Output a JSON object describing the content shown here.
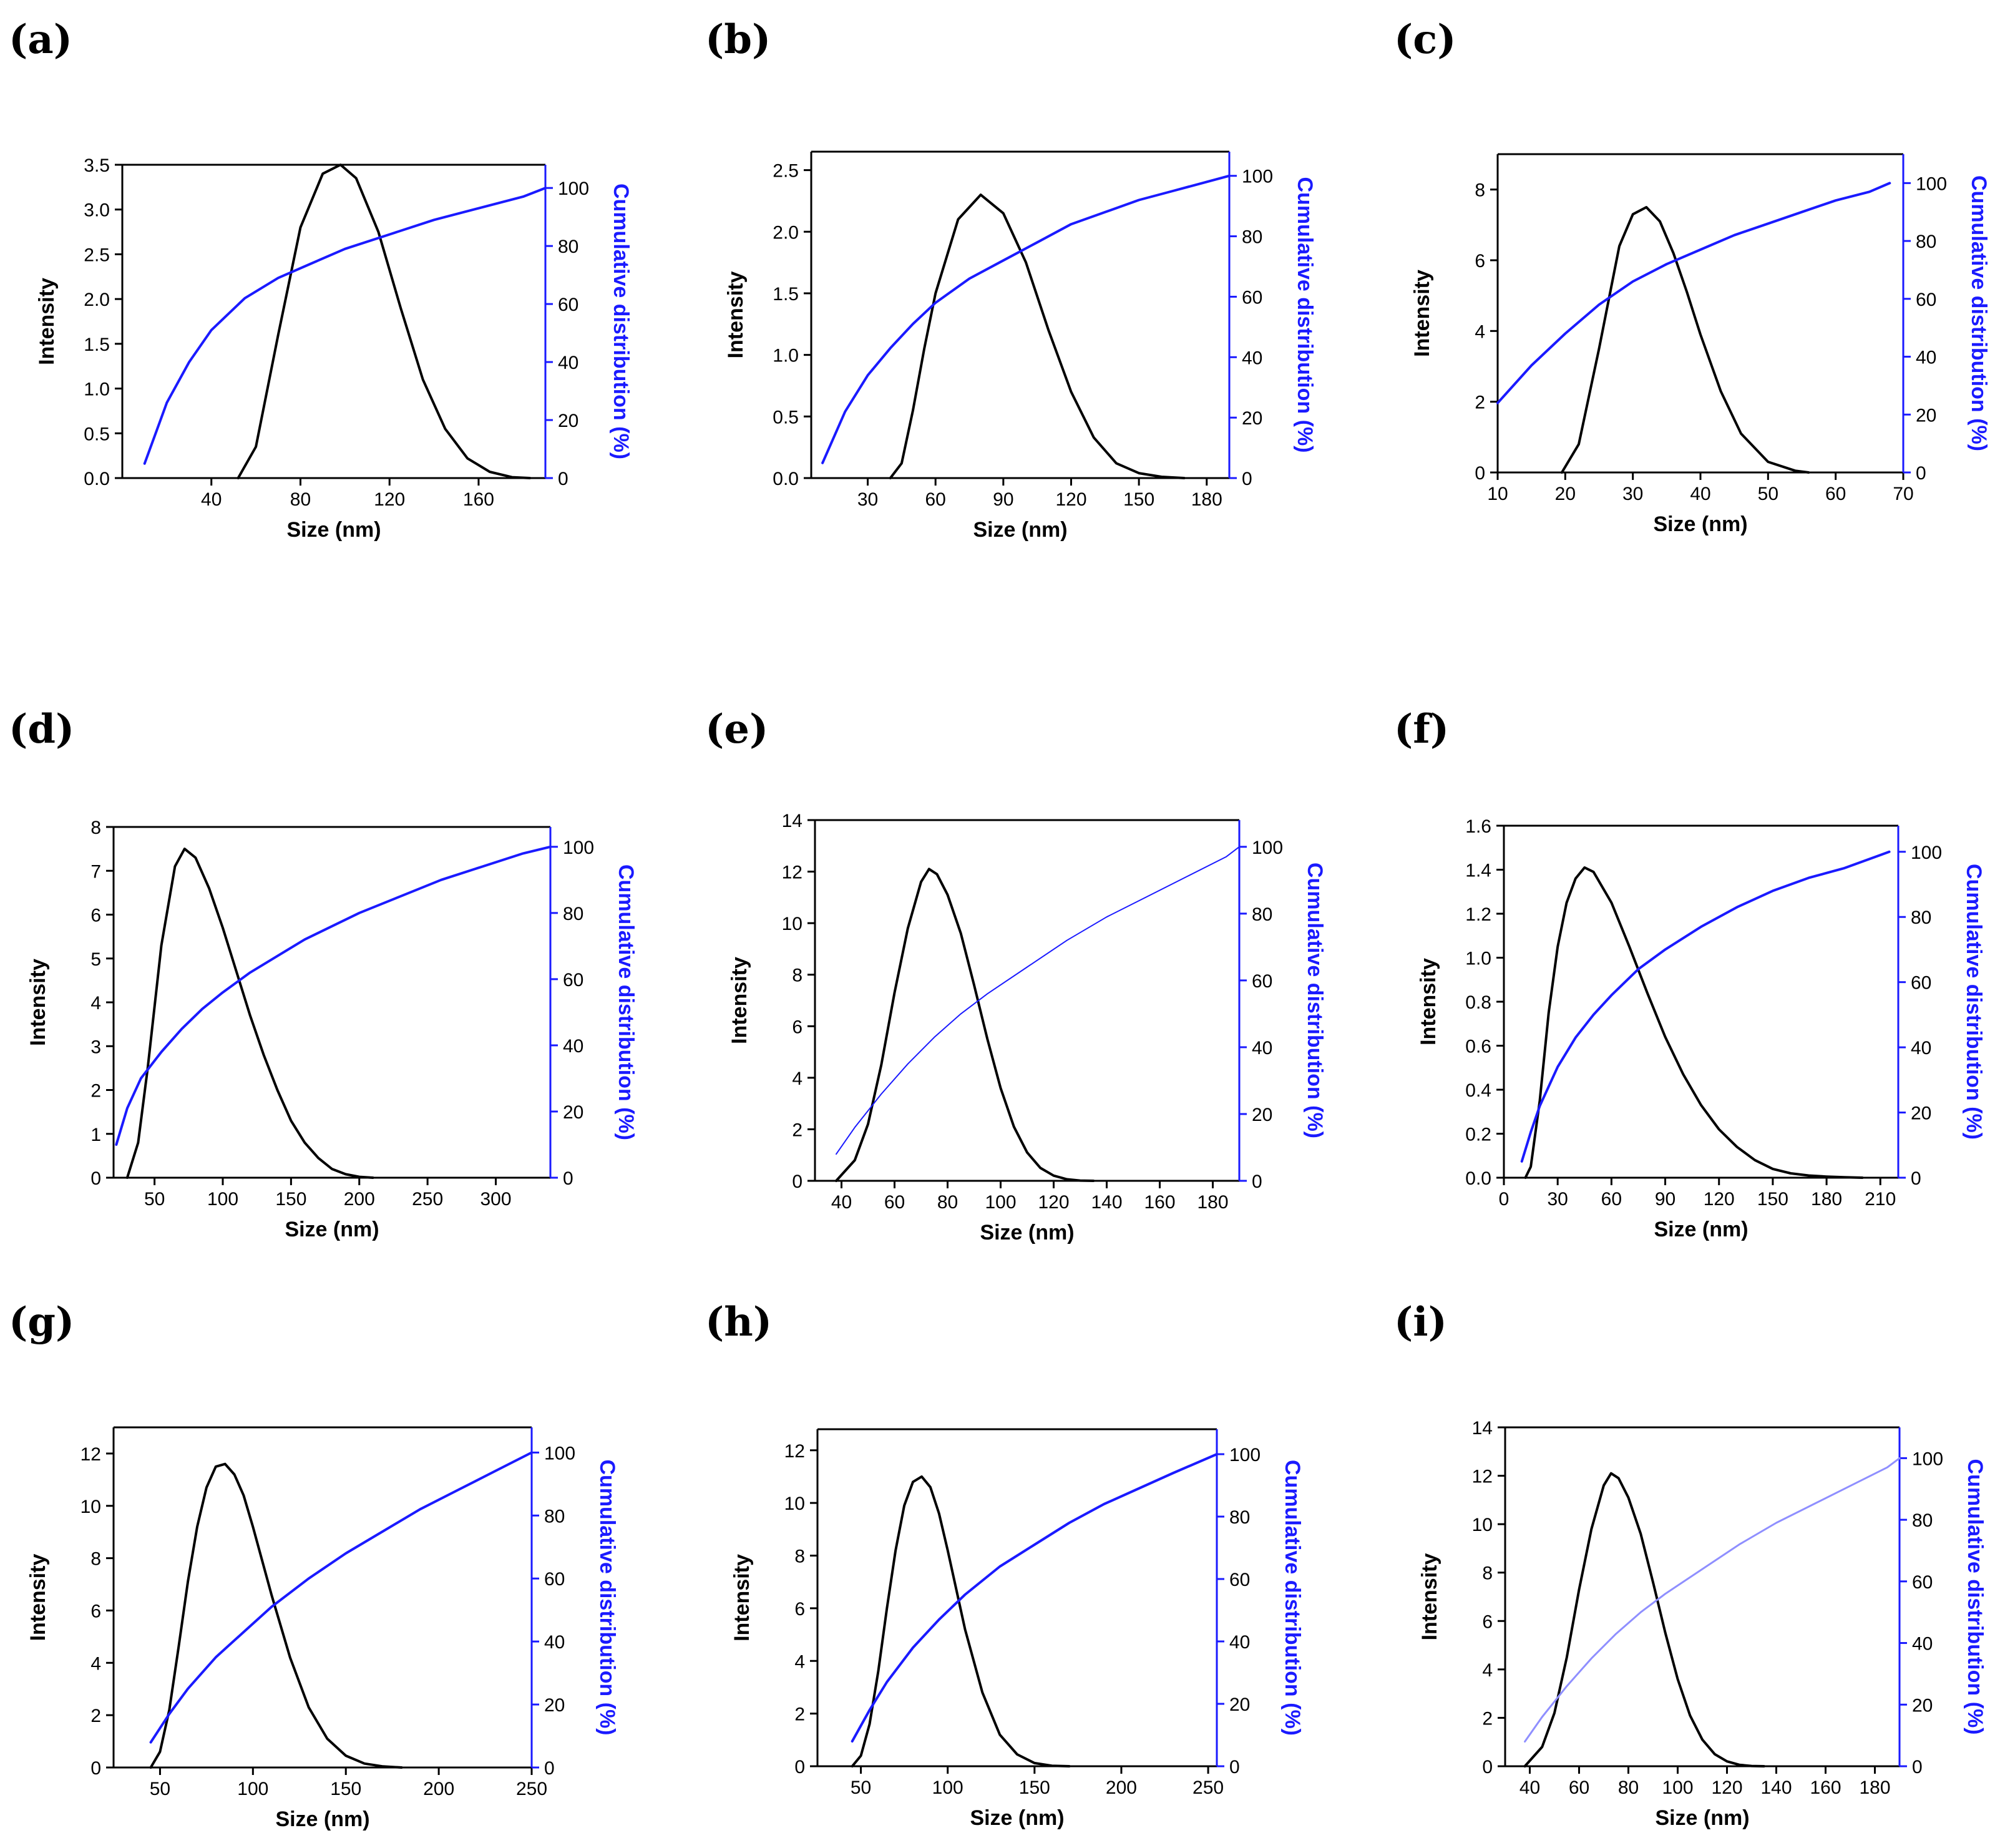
{
  "figure": {
    "colors": {
      "intensity": "#000000",
      "cumulative": "#1a1aff",
      "cumulative_light": "#8f8fff"
    }
  },
  "chart_data": [
    {
      "panel": "(a)",
      "type": "line",
      "xlabel": "Size (nm)",
      "ylabel": "Intensity",
      "y2label": "Cumulative distribution (%)",
      "xlim": [
        0,
        190
      ],
      "ylim": [
        0,
        3.5
      ],
      "y2lim": [
        0,
        108
      ],
      "xticks": [
        40,
        80,
        120,
        160
      ],
      "yticks": [
        0.0,
        0.5,
        1.0,
        1.5,
        2.0,
        2.5,
        3.0,
        3.5
      ],
      "y2ticks": [
        0,
        20,
        40,
        60,
        80,
        100
      ],
      "ytick_labels": [
        "0.0",
        "0.5",
        "1.0",
        "1.5",
        "2.0",
        "2.5",
        "3.0",
        "3.5"
      ],
      "series": [
        {
          "name": "Intensity",
          "axis": "left",
          "x": [
            52,
            60,
            70,
            80,
            90,
            98,
            105,
            115,
            125,
            135,
            145,
            155,
            165,
            175,
            183
          ],
          "y": [
            0,
            0.35,
            1.6,
            2.8,
            3.4,
            3.5,
            3.35,
            2.75,
            1.9,
            1.1,
            0.55,
            0.22,
            0.07,
            0.01,
            0
          ]
        },
        {
          "name": "Cumulative",
          "axis": "right",
          "x": [
            10,
            20,
            30,
            40,
            55,
            70,
            85,
            100,
            120,
            140,
            160,
            180,
            190
          ],
          "y": [
            5,
            26,
            40,
            51,
            62,
            69,
            74,
            79,
            84,
            89,
            93,
            97,
            100
          ]
        }
      ]
    },
    {
      "panel": "(b)",
      "type": "line",
      "xlabel": "Size (nm)",
      "ylabel": "Intensity",
      "y2label": "Cumulative distribution (%)",
      "xlim": [
        5,
        190
      ],
      "ylim": [
        0,
        2.65
      ],
      "y2lim": [
        0,
        108
      ],
      "xticks": [
        30,
        60,
        90,
        120,
        150,
        180
      ],
      "yticks": [
        0.0,
        0.5,
        1.0,
        1.5,
        2.0,
        2.5
      ],
      "y2ticks": [
        0,
        20,
        40,
        60,
        80,
        100
      ],
      "ytick_labels": [
        "0.0",
        "0.5",
        "1.0",
        "1.5",
        "2.0",
        "2.5"
      ],
      "series": [
        {
          "name": "Intensity",
          "axis": "left",
          "x": [
            40,
            45,
            50,
            55,
            60,
            70,
            80,
            90,
            100,
            110,
            120,
            130,
            140,
            150,
            160,
            170
          ],
          "y": [
            0,
            0.12,
            0.55,
            1.05,
            1.5,
            2.1,
            2.3,
            2.15,
            1.75,
            1.2,
            0.7,
            0.33,
            0.12,
            0.04,
            0.01,
            0
          ]
        },
        {
          "name": "Cumulative",
          "axis": "right",
          "x": [
            10,
            20,
            30,
            40,
            50,
            60,
            75,
            90,
            105,
            120,
            135,
            150,
            165,
            180,
            190
          ],
          "y": [
            5,
            22,
            34,
            43,
            51,
            58,
            66,
            72,
            78,
            84,
            88,
            92,
            95,
            98,
            100
          ]
        }
      ]
    },
    {
      "panel": "(c)",
      "type": "line",
      "xlabel": "Size (nm)",
      "ylabel": "Intensity",
      "y2label": "Cumulative distribution (%)",
      "xlim": [
        10,
        70
      ],
      "ylim": [
        0,
        9
      ],
      "y2lim": [
        0,
        110
      ],
      "xticks": [
        10,
        20,
        30,
        40,
        50,
        60,
        70
      ],
      "yticks": [
        0,
        2,
        4,
        6,
        8
      ],
      "y2ticks": [
        0,
        20,
        40,
        60,
        80,
        100
      ],
      "ytick_labels": [
        "0",
        "2",
        "4",
        "6",
        "8"
      ],
      "series": [
        {
          "name": "Intensity",
          "axis": "left",
          "x": [
            19.5,
            22,
            25,
            28,
            30,
            32,
            34,
            36,
            38,
            40,
            43,
            46,
            50,
            54,
            56
          ],
          "y": [
            0,
            0.8,
            3.5,
            6.4,
            7.3,
            7.5,
            7.1,
            6.2,
            5.1,
            3.9,
            2.3,
            1.1,
            0.3,
            0.05,
            0
          ]
        },
        {
          "name": "Cumulative",
          "axis": "right",
          "x": [
            10,
            15,
            20,
            25,
            30,
            35,
            40,
            45,
            50,
            55,
            60,
            65,
            68
          ],
          "y": [
            24,
            37,
            48,
            58,
            66,
            72,
            77,
            82,
            86,
            90,
            94,
            97,
            100
          ]
        }
      ]
    },
    {
      "panel": "(d)",
      "type": "line",
      "xlabel": "Size (nm)",
      "ylabel": "Intensity",
      "y2label": "Cumulative distribution (%)",
      "xlim": [
        20,
        340
      ],
      "ylim": [
        0,
        8
      ],
      "y2lim": [
        0,
        106
      ],
      "xticks": [
        50,
        100,
        150,
        200,
        250,
        300
      ],
      "yticks": [
        0,
        1,
        2,
        3,
        4,
        5,
        6,
        7,
        8
      ],
      "y2ticks": [
        0,
        20,
        40,
        60,
        80,
        100
      ],
      "ytick_labels": [
        "0",
        "1",
        "2",
        "3",
        "4",
        "5",
        "6",
        "7",
        "8"
      ],
      "series": [
        {
          "name": "Intensity",
          "axis": "left",
          "x": [
            30,
            38,
            45,
            55,
            65,
            72,
            80,
            90,
            100,
            110,
            120,
            130,
            140,
            150,
            160,
            170,
            180,
            190,
            200,
            210
          ],
          "y": [
            0,
            0.8,
            2.5,
            5.3,
            7.1,
            7.5,
            7.3,
            6.6,
            5.7,
            4.7,
            3.7,
            2.8,
            2.0,
            1.3,
            0.8,
            0.45,
            0.2,
            0.08,
            0.02,
            0
          ]
        },
        {
          "name": "Cumulative",
          "axis": "right",
          "x": [
            22,
            30,
            40,
            55,
            70,
            85,
            100,
            120,
            140,
            160,
            180,
            200,
            230,
            260,
            290,
            320,
            340
          ],
          "y": [
            10,
            21,
            30,
            38,
            45,
            51,
            56,
            62,
            67,
            72,
            76,
            80,
            85,
            90,
            94,
            98,
            100
          ]
        }
      ]
    },
    {
      "panel": "(e)",
      "type": "line",
      "xlabel": "Size (nm)",
      "ylabel": "Intensity",
      "y2label": "Cumulative distribution (%)",
      "xlim": [
        30,
        190
      ],
      "ylim": [
        0,
        14
      ],
      "y2lim": [
        0,
        108
      ],
      "xticks": [
        40,
        60,
        80,
        100,
        120,
        140,
        160,
        180
      ],
      "yticks": [
        0,
        2,
        4,
        6,
        8,
        10,
        12,
        14
      ],
      "y2ticks": [
        0,
        20,
        40,
        60,
        80,
        100
      ],
      "ytick_labels": [
        "0",
        "2",
        "4",
        "6",
        "8",
        "10",
        "12",
        "14"
      ],
      "series": [
        {
          "name": "Intensity",
          "axis": "left",
          "x": [
            38,
            45,
            50,
            55,
            60,
            65,
            70,
            73,
            76,
            80,
            85,
            90,
            95,
            100,
            105,
            110,
            115,
            120,
            125,
            130,
            135
          ],
          "y": [
            0,
            0.8,
            2.2,
            4.5,
            7.3,
            9.8,
            11.6,
            12.1,
            11.9,
            11.1,
            9.6,
            7.6,
            5.5,
            3.6,
            2.1,
            1.1,
            0.5,
            0.2,
            0.06,
            0.01,
            0
          ]
        },
        {
          "name": "Cumulative",
          "axis": "right",
          "x": [
            38,
            45,
            55,
            65,
            75,
            85,
            95,
            110,
            125,
            140,
            155,
            170,
            185,
            190
          ],
          "y": [
            8,
            16,
            26,
            35,
            43,
            50,
            56,
            64,
            72,
            79,
            85,
            91,
            97,
            100
          ]
        }
      ]
    },
    {
      "panel": "(f)",
      "type": "line",
      "xlabel": "Size (nm)",
      "ylabel": "Intensity",
      "y2label": "Cumulative distribution (%)",
      "xlim": [
        0,
        220
      ],
      "ylim": [
        0,
        1.6
      ],
      "y2lim": [
        0,
        108
      ],
      "xticks": [
        0,
        30,
        60,
        90,
        120,
        150,
        180,
        210
      ],
      "yticks": [
        0.0,
        0.2,
        0.4,
        0.6,
        0.8,
        1.0,
        1.2,
        1.4,
        1.6
      ],
      "y2ticks": [
        0,
        20,
        40,
        60,
        80,
        100
      ],
      "ytick_labels": [
        "0.0",
        "0.2",
        "0.4",
        "0.6",
        "0.8",
        "1.0",
        "1.2",
        "1.4",
        "1.6"
      ],
      "series": [
        {
          "name": "Intensity",
          "axis": "left",
          "x": [
            12,
            15,
            20,
            25,
            30,
            35,
            40,
            45,
            50,
            60,
            70,
            80,
            90,
            100,
            110,
            120,
            130,
            140,
            150,
            160,
            170,
            180,
            190,
            200
          ],
          "y": [
            0,
            0.05,
            0.35,
            0.75,
            1.05,
            1.25,
            1.36,
            1.41,
            1.39,
            1.25,
            1.05,
            0.84,
            0.64,
            0.47,
            0.33,
            0.22,
            0.14,
            0.08,
            0.04,
            0.02,
            0.01,
            0.005,
            0.002,
            0
          ]
        },
        {
          "name": "Cumulative",
          "axis": "right",
          "x": [
            10,
            15,
            20,
            30,
            40,
            50,
            60,
            75,
            90,
            110,
            130,
            150,
            170,
            190,
            210,
            215
          ],
          "y": [
            5,
            14,
            22,
            34,
            43,
            50,
            56,
            64,
            70,
            77,
            83,
            88,
            92,
            95,
            99,
            100
          ]
        }
      ]
    },
    {
      "panel": "(g)",
      "type": "line",
      "xlabel": "Size (nm)",
      "ylabel": "Intensity",
      "y2label": "Cumulative distribution (%)",
      "xlim": [
        25,
        250
      ],
      "ylim": [
        0,
        13
      ],
      "y2lim": [
        0,
        108
      ],
      "xticks": [
        50,
        100,
        150,
        200,
        250
      ],
      "yticks": [
        0,
        2,
        4,
        6,
        8,
        10,
        12
      ],
      "y2ticks": [
        0,
        20,
        40,
        60,
        80,
        100
      ],
      "ytick_labels": [
        "0",
        "2",
        "4",
        "6",
        "8",
        "10",
        "12"
      ],
      "series": [
        {
          "name": "Intensity",
          "axis": "left",
          "x": [
            45,
            50,
            55,
            60,
            65,
            70,
            75,
            80,
            85,
            90,
            95,
            100,
            110,
            120,
            130,
            140,
            150,
            160,
            170,
            180
          ],
          "y": [
            0,
            0.6,
            2.2,
            4.6,
            7.1,
            9.2,
            10.7,
            11.5,
            11.6,
            11.2,
            10.4,
            9.2,
            6.6,
            4.2,
            2.3,
            1.1,
            0.45,
            0.15,
            0.04,
            0
          ]
        },
        {
          "name": "Cumulative",
          "axis": "right",
          "x": [
            45,
            55,
            65,
            80,
            95,
            110,
            130,
            150,
            170,
            190,
            210,
            230,
            250
          ],
          "y": [
            8,
            17,
            25,
            35,
            43,
            51,
            60,
            68,
            75,
            82,
            88,
            94,
            100
          ]
        }
      ]
    },
    {
      "panel": "(h)",
      "type": "line",
      "xlabel": "Size (nm)",
      "ylabel": "Intensity",
      "y2label": "Cumulative distribution (%)",
      "xlim": [
        25,
        255
      ],
      "ylim": [
        0,
        12.8
      ],
      "y2lim": [
        0,
        108
      ],
      "xticks": [
        50,
        100,
        150,
        200,
        250
      ],
      "yticks": [
        0,
        2,
        4,
        6,
        8,
        10,
        12
      ],
      "y2ticks": [
        0,
        20,
        40,
        60,
        80,
        100
      ],
      "ytick_labels": [
        "0",
        "2",
        "4",
        "6",
        "8",
        "10",
        "12"
      ],
      "series": [
        {
          "name": "Intensity",
          "axis": "left",
          "x": [
            45,
            50,
            55,
            60,
            65,
            70,
            75,
            80,
            85,
            90,
            95,
            100,
            105,
            110,
            120,
            130,
            140,
            150,
            160,
            170
          ],
          "y": [
            0,
            0.4,
            1.6,
            3.6,
            6.0,
            8.2,
            9.9,
            10.8,
            11.0,
            10.6,
            9.6,
            8.2,
            6.7,
            5.2,
            2.8,
            1.2,
            0.45,
            0.12,
            0.02,
            0
          ]
        },
        {
          "name": "Cumulative",
          "axis": "right",
          "x": [
            45,
            55,
            65,
            80,
            95,
            110,
            130,
            150,
            170,
            190,
            210,
            230,
            255
          ],
          "y": [
            8,
            18,
            27,
            38,
            47,
            55,
            64,
            71,
            78,
            84,
            89,
            94,
            100
          ]
        }
      ]
    },
    {
      "panel": "(i)",
      "type": "line",
      "xlabel": "Size (nm)",
      "ylabel": "Intensity",
      "y2label": "Cumulative distribution (%)",
      "xlim": [
        30,
        190
      ],
      "ylim": [
        0,
        14
      ],
      "y2lim": [
        0,
        110
      ],
      "xticks": [
        40,
        60,
        80,
        100,
        120,
        140,
        160,
        180
      ],
      "yticks": [
        0,
        2,
        4,
        6,
        8,
        10,
        12,
        14
      ],
      "y2ticks": [
        0,
        20,
        40,
        60,
        80,
        100
      ],
      "ytick_labels": [
        "0",
        "2",
        "4",
        "6",
        "8",
        "10",
        "12",
        "14"
      ],
      "series": [
        {
          "name": "Intensity",
          "axis": "left",
          "x": [
            38,
            45,
            50,
            55,
            60,
            65,
            70,
            73,
            76,
            80,
            85,
            90,
            95,
            100,
            105,
            110,
            115,
            120,
            125,
            130,
            135
          ],
          "y": [
            0,
            0.8,
            2.2,
            4.5,
            7.3,
            9.8,
            11.6,
            12.1,
            11.9,
            11.1,
            9.6,
            7.6,
            5.5,
            3.6,
            2.1,
            1.1,
            0.5,
            0.2,
            0.06,
            0.01,
            0
          ]
        },
        {
          "name": "Cumulative",
          "axis": "right",
          "x": [
            38,
            45,
            55,
            65,
            75,
            85,
            95,
            110,
            125,
            140,
            155,
            170,
            185,
            190
          ],
          "y": [
            8,
            16,
            26,
            35,
            43,
            50,
            56,
            64,
            72,
            79,
            85,
            91,
            97,
            100
          ]
        }
      ]
    }
  ]
}
